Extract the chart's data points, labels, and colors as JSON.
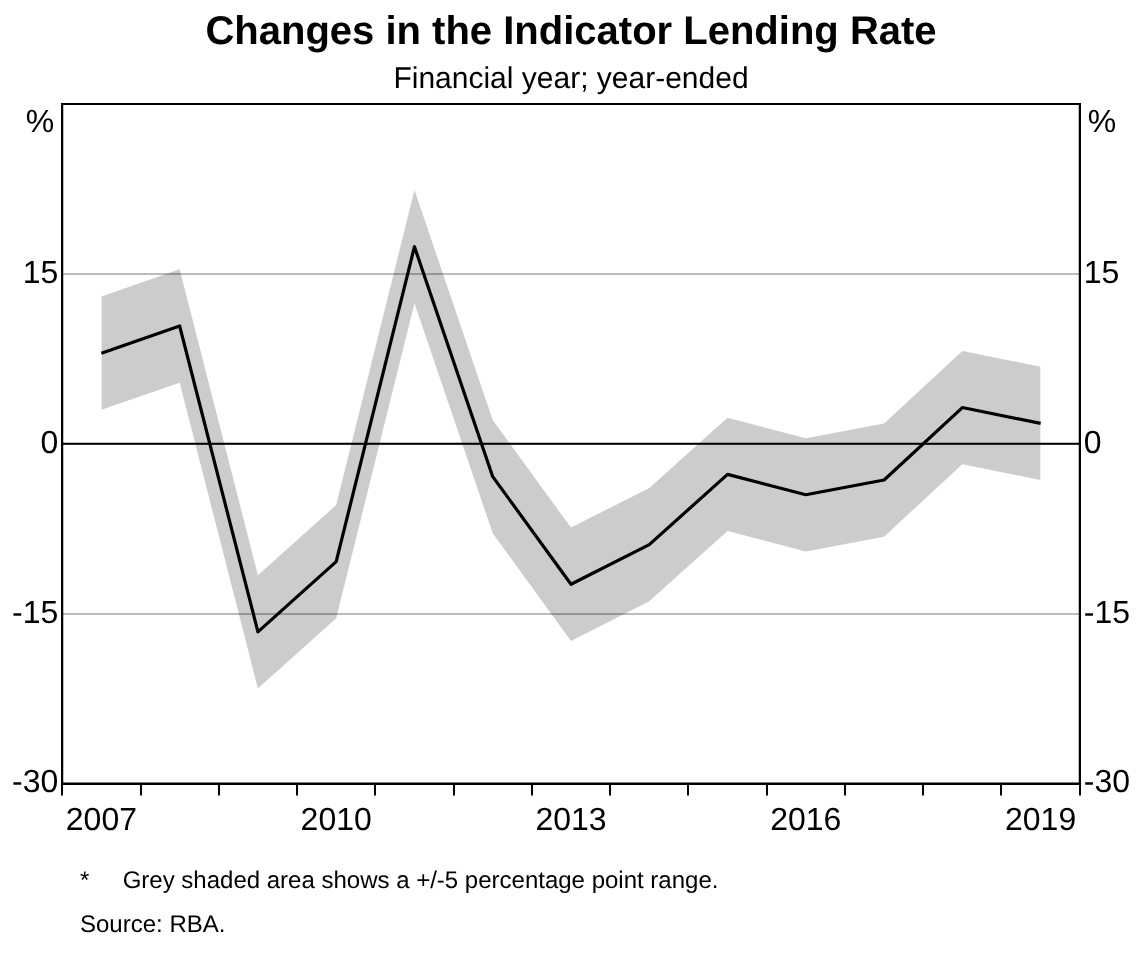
{
  "chart_data": {
    "type": "line",
    "title": "Changes in the Indicator Lending Rate",
    "subtitle": "Financial year; year-ended",
    "ylabel": "%",
    "y2label": "%",
    "categories": [
      "2007",
      null,
      null,
      "2010",
      null,
      null,
      "2013",
      null,
      null,
      "2016",
      null,
      null,
      "2019"
    ],
    "series": [
      {
        "color": "#000000",
        "values": [
          8,
          10.4,
          -16.6,
          -10.4,
          17.4,
          -2.9,
          -12.4,
          -8.9,
          -2.7,
          -4.5,
          -3.2,
          3.2,
          1.8
        ],
        "lower": [
          3,
          5.4,
          -21.6,
          -15.4,
          12.4,
          -7.9,
          -17.4,
          -13.9,
          -7.7,
          -9.5,
          -8.2,
          -1.8,
          -3.2
        ],
        "upper": [
          13,
          15.4,
          -11.6,
          -5.4,
          22.4,
          2.1,
          -7.4,
          -3.9,
          2.3,
          0.5,
          1.8,
          8.2,
          6.8
        ]
      }
    ],
    "ylim": [
      -30,
      30
    ],
    "yticks": [
      -30,
      -15,
      0,
      15
    ],
    "y2lim": [
      -30,
      30
    ],
    "y2ticks": [
      -30,
      -15,
      0,
      15
    ],
    "grid": "y",
    "legend": false,
    "marker": "none",
    "line_style": "solid",
    "ref_lines": [
      {
        "axis": "y",
        "value": 0,
        "color": "#000000"
      }
    ],
    "annotations": [
      "*     Grey shaded area shows a +/-5 percentage point range.",
      "Source: RBA."
    ]
  }
}
